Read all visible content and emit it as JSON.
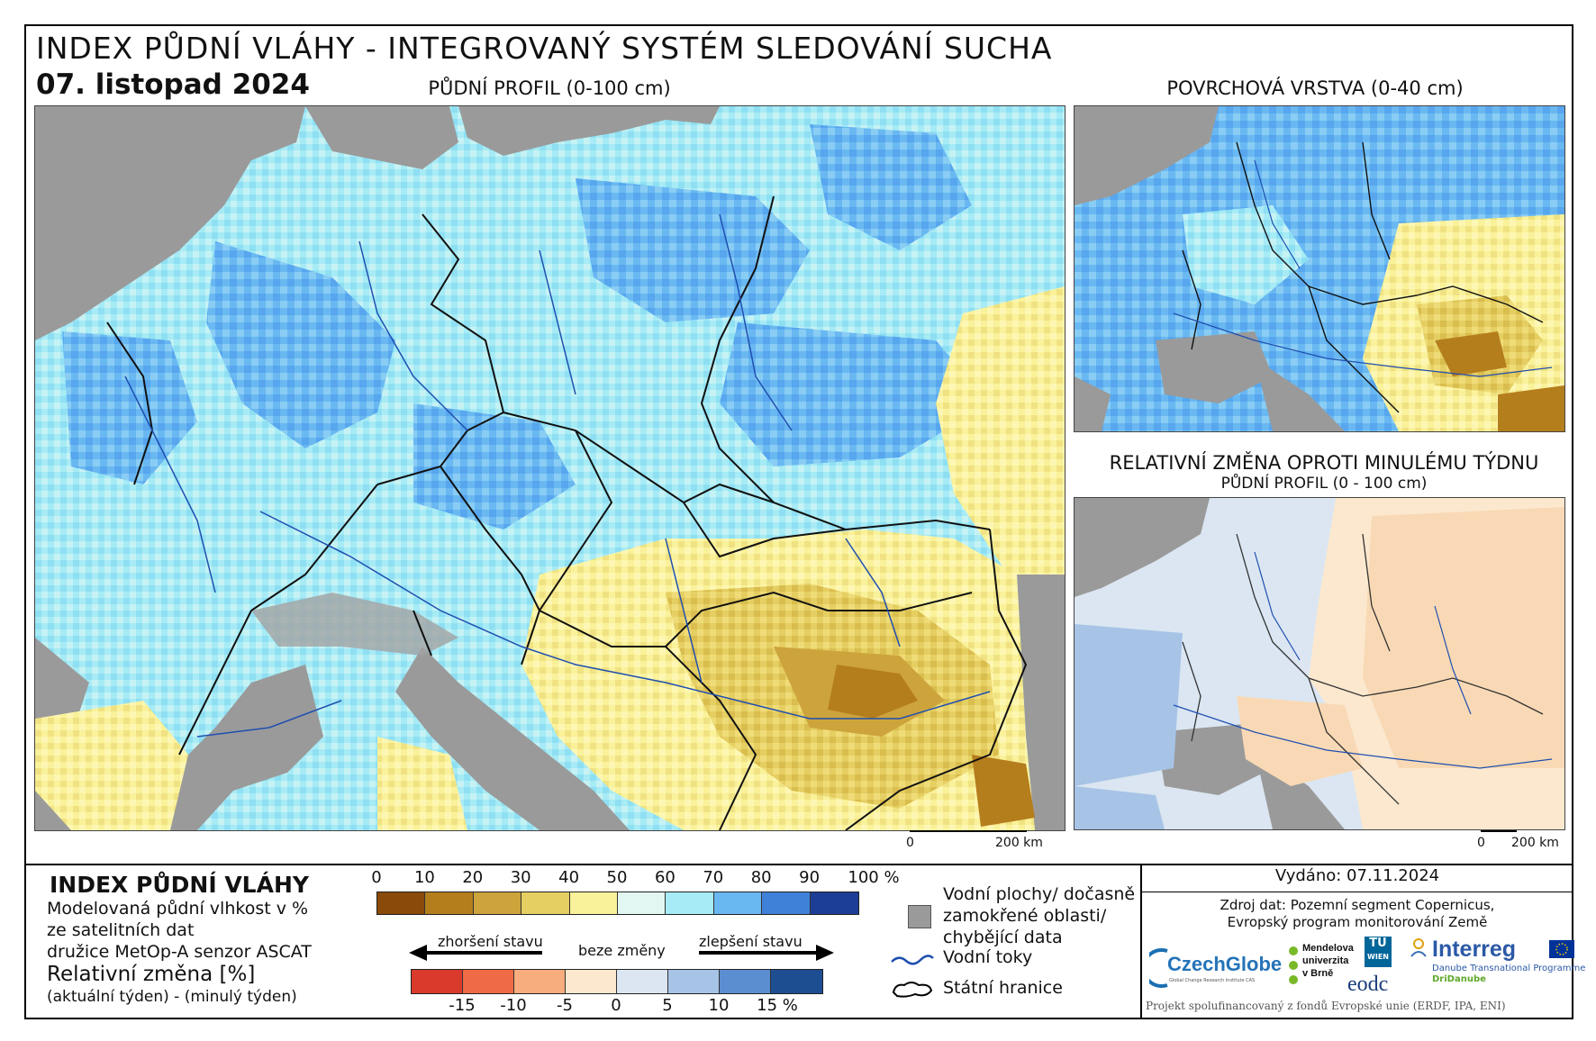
{
  "header": {
    "title": "INDEX PŮDNÍ VLÁHY - INTEGROVANÝ SYSTÉM SLEDOVÁNÍ SUCHA",
    "date": "07. listopad 2024"
  },
  "maps": {
    "main_label": "PŮDNÍ PROFIL (0-100 cm)",
    "surface_label": "POVRCHOVÁ VRSTVA (0-40 cm)",
    "change_label": "RELATIVNÍ ZMĚNA OPROTI MINULÉMU TÝDNU",
    "change_sublabel": "PŮDNÍ PROFIL (0 - 100 cm)",
    "scale_zero": "0",
    "scale_main": "200 km",
    "scale_small": "200 km"
  },
  "legend": {
    "title": "INDEX PŮDNÍ VLÁHY",
    "desc1": "Modelovaná půdní vlhkost v %",
    "desc2": "ze satelitních dat",
    "desc3": "družice MetOp-A senzor ASCAT",
    "rel_title": "Relativní změna [%]",
    "rel_desc": "(aktuální týden) - (minulý týden)",
    "moisture_ticks": [
      "0",
      "10",
      "20",
      "30",
      "40",
      "50",
      "60",
      "70",
      "80",
      "90",
      "100 %"
    ],
    "moisture_colors": [
      "#8a4a0a",
      "#b57e1d",
      "#cda43c",
      "#e6cf62",
      "#faf29a",
      "#e2f7f2",
      "#a6ebf5",
      "#69b8f2",
      "#3f81d8",
      "#1c3e96"
    ],
    "change_ticks": [
      "-15",
      "-10",
      "-5",
      "0",
      "5",
      "10",
      "15 %"
    ],
    "change_colors": [
      "#d93a2b",
      "#ef6b45",
      "#f7ad7e",
      "#fbe8cf",
      "#dbe6f2",
      "#a7c4e6",
      "#5b8ed0",
      "#1d4e92"
    ],
    "worse": "zhoršení stavu",
    "nochange": "beze změny",
    "better": "zlepšení stavu",
    "water_bodies": [
      "Vodní plochy/ dočasně",
      "zamokřené oblasti/",
      "chybějící data"
    ],
    "rivers": "Vodní toky",
    "borders": "Státní hranice"
  },
  "info": {
    "issued": "Vydáno: 07.11.2024",
    "source1": "Zdroj dat: Pozemní segment Copernicus,",
    "source2": "Evropský program monitorování Země",
    "footnote": "Projekt spolufinancovaný z fondů Evropské unie (ERDF, IPA, ENI)"
  },
  "logos": {
    "czechglobe": "CzechGlobe",
    "czechglobe_sub": "Global Change Research Institute CAS",
    "mendel": [
      "Mendelova",
      "univerzita",
      "v Brně"
    ],
    "tuwien": [
      "TU",
      "WIEN"
    ],
    "eodc": "eodc",
    "interreg": "Interreg",
    "interreg_sub1": "Danube Transnational Programme",
    "interreg_sub2": "DriDanube"
  }
}
